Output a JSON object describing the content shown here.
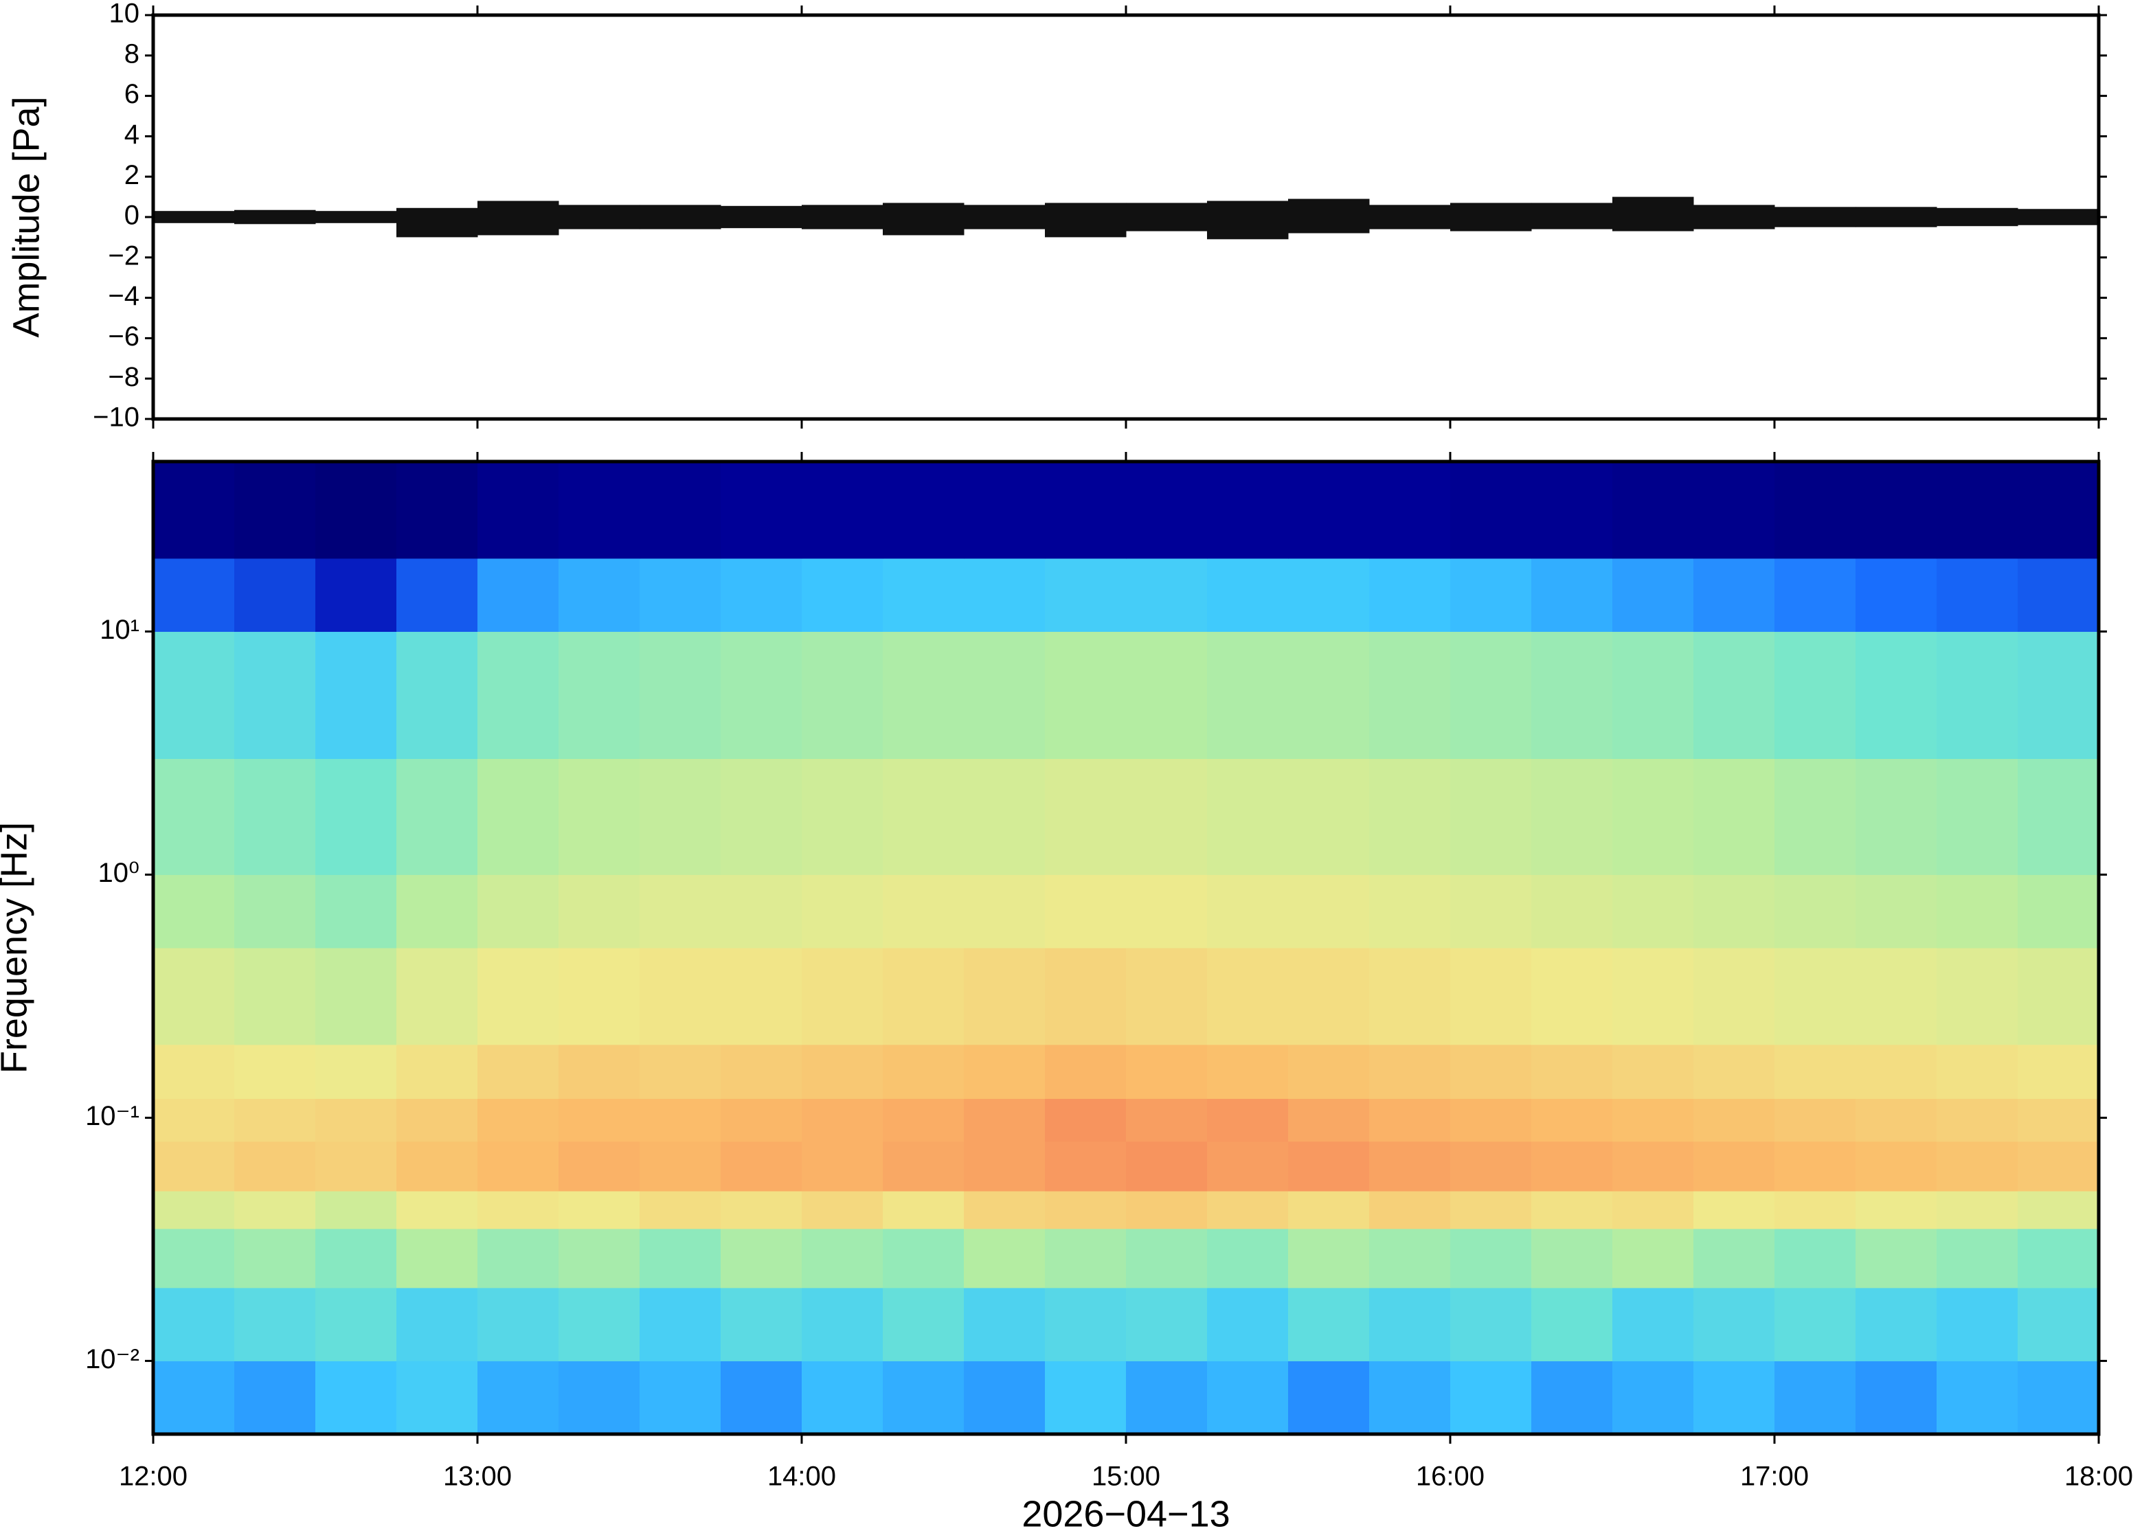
{
  "chart_data": [
    {
      "type": "envelope",
      "ylabel": "Amplitude [Pa]",
      "xlim": [
        12,
        18
      ],
      "xticks": [
        12,
        13,
        14,
        15,
        16,
        17,
        18
      ],
      "ylim": [
        -10,
        10
      ],
      "yticks": [
        {
          "value": -10,
          "label": "−10"
        },
        {
          "value": -8,
          "label": "−8"
        },
        {
          "value": -6,
          "label": "−6"
        },
        {
          "value": -4,
          "label": "−4"
        },
        {
          "value": -2,
          "label": "−2"
        },
        0,
        2,
        4,
        6,
        8,
        10
      ],
      "color": "#111111",
      "x": [
        12.125,
        12.375,
        12.625,
        12.875,
        13.125,
        13.375,
        13.625,
        13.875,
        14.125,
        14.375,
        14.625,
        14.875,
        15.125,
        15.375,
        15.625,
        15.875,
        16.125,
        16.375,
        16.625,
        16.875,
        17.125,
        17.375,
        17.625,
        17.875
      ],
      "max": [
        0.3,
        0.35,
        0.3,
        0.45,
        0.8,
        0.6,
        0.6,
        0.55,
        0.6,
        0.7,
        0.6,
        0.7,
        0.7,
        0.8,
        0.9,
        0.6,
        0.7,
        0.7,
        1.0,
        0.6,
        0.5,
        0.5,
        0.45,
        0.4
      ],
      "min": [
        -0.3,
        -0.35,
        -0.3,
        -1.0,
        -0.9,
        -0.6,
        -0.6,
        -0.55,
        -0.6,
        -0.9,
        -0.6,
        -1.0,
        -0.7,
        -1.1,
        -0.8,
        -0.6,
        -0.7,
        -0.6,
        -0.7,
        -0.6,
        -0.5,
        -0.5,
        -0.45,
        -0.4
      ]
    },
    {
      "type": "heatmap",
      "xlabel": "2026−04−13",
      "ylabel": "Frequency [Hz]",
      "xlim": [
        12,
        18
      ],
      "xticks": [
        {
          "value": 12,
          "label": "12:00"
        },
        {
          "value": 13,
          "label": "13:00"
        },
        {
          "value": 14,
          "label": "14:00"
        },
        {
          "value": 15,
          "label": "15:00"
        },
        {
          "value": 16,
          "label": "16:00"
        },
        {
          "value": 17,
          "label": "17:00"
        },
        {
          "value": 18,
          "label": "18:00"
        }
      ],
      "ylim": [
        0.005,
        50
      ],
      "log_y": true,
      "yticks": [
        {
          "value": 0.01,
          "label": "10⁻²"
        },
        {
          "value": 0.1,
          "label": "10⁻¹"
        },
        {
          "value": 1,
          "label": "10⁰"
        },
        {
          "value": 10,
          "label": "10¹"
        }
      ],
      "colormap": [
        "#000066",
        "#0000aa",
        "#1a70ff",
        "#3dc8ff",
        "#70e6d0",
        "#b8eda0",
        "#f0ea8c",
        "#fbbd6a",
        "#f6855a",
        "#e04a4a"
      ],
      "time_bins": [
        12,
        12.25,
        12.5,
        12.75,
        13,
        13.25,
        13.5,
        13.75,
        14,
        14.25,
        14.5,
        14.75,
        15,
        15.25,
        15.5,
        15.75,
        16,
        16.25,
        16.5,
        16.75,
        17,
        17.25,
        17.5,
        17.75,
        18
      ],
      "freq_bins": [
        0.005,
        0.01,
        0.02,
        0.035,
        0.05,
        0.08,
        0.12,
        0.2,
        0.5,
        1,
        3,
        10,
        20,
        50
      ],
      "z": [
        [
          0.3,
          0.28,
          0.33,
          0.35,
          0.3,
          0.29,
          0.31,
          0.27,
          0.32,
          0.3,
          0.28,
          0.34,
          0.29,
          0.31,
          0.26,
          0.3,
          0.33,
          0.28,
          0.3,
          0.32,
          0.29,
          0.27,
          0.31,
          0.3
        ],
        [
          0.38,
          0.4,
          0.42,
          0.37,
          0.39,
          0.41,
          0.36,
          0.4,
          0.38,
          0.42,
          0.37,
          0.39,
          0.4,
          0.36,
          0.41,
          0.38,
          0.4,
          0.43,
          0.37,
          0.39,
          0.41,
          0.38,
          0.36,
          0.4
        ],
        [
          0.5,
          0.52,
          0.48,
          0.55,
          0.51,
          0.53,
          0.49,
          0.54,
          0.52,
          0.5,
          0.55,
          0.53,
          0.51,
          0.49,
          0.54,
          0.52,
          0.5,
          0.53,
          0.55,
          0.51,
          0.48,
          0.52,
          0.5,
          0.47
        ],
        [
          0.62,
          0.64,
          0.6,
          0.66,
          0.68,
          0.67,
          0.7,
          0.69,
          0.71,
          0.68,
          0.72,
          0.73,
          0.74,
          0.72,
          0.7,
          0.73,
          0.71,
          0.69,
          0.7,
          0.67,
          0.68,
          0.66,
          0.65,
          0.63
        ],
        [
          0.72,
          0.74,
          0.73,
          0.76,
          0.78,
          0.8,
          0.79,
          0.81,
          0.8,
          0.82,
          0.83,
          0.85,
          0.86,
          0.84,
          0.85,
          0.83,
          0.82,
          0.81,
          0.8,
          0.79,
          0.78,
          0.77,
          0.76,
          0.75
        ],
        [
          0.7,
          0.71,
          0.72,
          0.74,
          0.77,
          0.78,
          0.78,
          0.79,
          0.8,
          0.81,
          0.83,
          0.86,
          0.84,
          0.85,
          0.82,
          0.8,
          0.79,
          0.78,
          0.77,
          0.76,
          0.75,
          0.74,
          0.73,
          0.72
        ],
        [
          0.68,
          0.67,
          0.66,
          0.69,
          0.72,
          0.74,
          0.73,
          0.74,
          0.75,
          0.76,
          0.77,
          0.79,
          0.78,
          0.77,
          0.76,
          0.75,
          0.74,
          0.73,
          0.72,
          0.71,
          0.7,
          0.7,
          0.69,
          0.68
        ],
        [
          0.62,
          0.6,
          0.58,
          0.63,
          0.66,
          0.67,
          0.68,
          0.68,
          0.69,
          0.7,
          0.71,
          0.72,
          0.71,
          0.7,
          0.7,
          0.69,
          0.68,
          0.67,
          0.66,
          0.65,
          0.64,
          0.64,
          0.63,
          0.62
        ],
        [
          0.55,
          0.53,
          0.5,
          0.56,
          0.6,
          0.62,
          0.63,
          0.63,
          0.64,
          0.65,
          0.65,
          0.66,
          0.66,
          0.65,
          0.65,
          0.64,
          0.63,
          0.62,
          0.61,
          0.6,
          0.59,
          0.58,
          0.57,
          0.55
        ],
        [
          0.5,
          0.48,
          0.45,
          0.5,
          0.55,
          0.57,
          0.58,
          0.59,
          0.6,
          0.61,
          0.61,
          0.62,
          0.62,
          0.61,
          0.61,
          0.6,
          0.59,
          0.58,
          0.57,
          0.56,
          0.54,
          0.53,
          0.52,
          0.5
        ],
        [
          0.42,
          0.4,
          0.36,
          0.42,
          0.48,
          0.5,
          0.51,
          0.52,
          0.53,
          0.54,
          0.54,
          0.55,
          0.55,
          0.54,
          0.54,
          0.53,
          0.52,
          0.51,
          0.5,
          0.48,
          0.46,
          0.44,
          0.43,
          0.42
        ],
        [
          0.2,
          0.18,
          0.14,
          0.2,
          0.28,
          0.3,
          0.31,
          0.32,
          0.33,
          0.34,
          0.34,
          0.35,
          0.35,
          0.34,
          0.34,
          0.33,
          0.32,
          0.3,
          0.28,
          0.26,
          0.24,
          0.22,
          0.21,
          0.2
        ],
        [
          0.05,
          0.04,
          0.03,
          0.04,
          0.06,
          0.07,
          0.07,
          0.08,
          0.08,
          0.08,
          0.08,
          0.08,
          0.08,
          0.08,
          0.08,
          0.08,
          0.07,
          0.07,
          0.06,
          0.06,
          0.05,
          0.05,
          0.05,
          0.05
        ]
      ]
    }
  ]
}
